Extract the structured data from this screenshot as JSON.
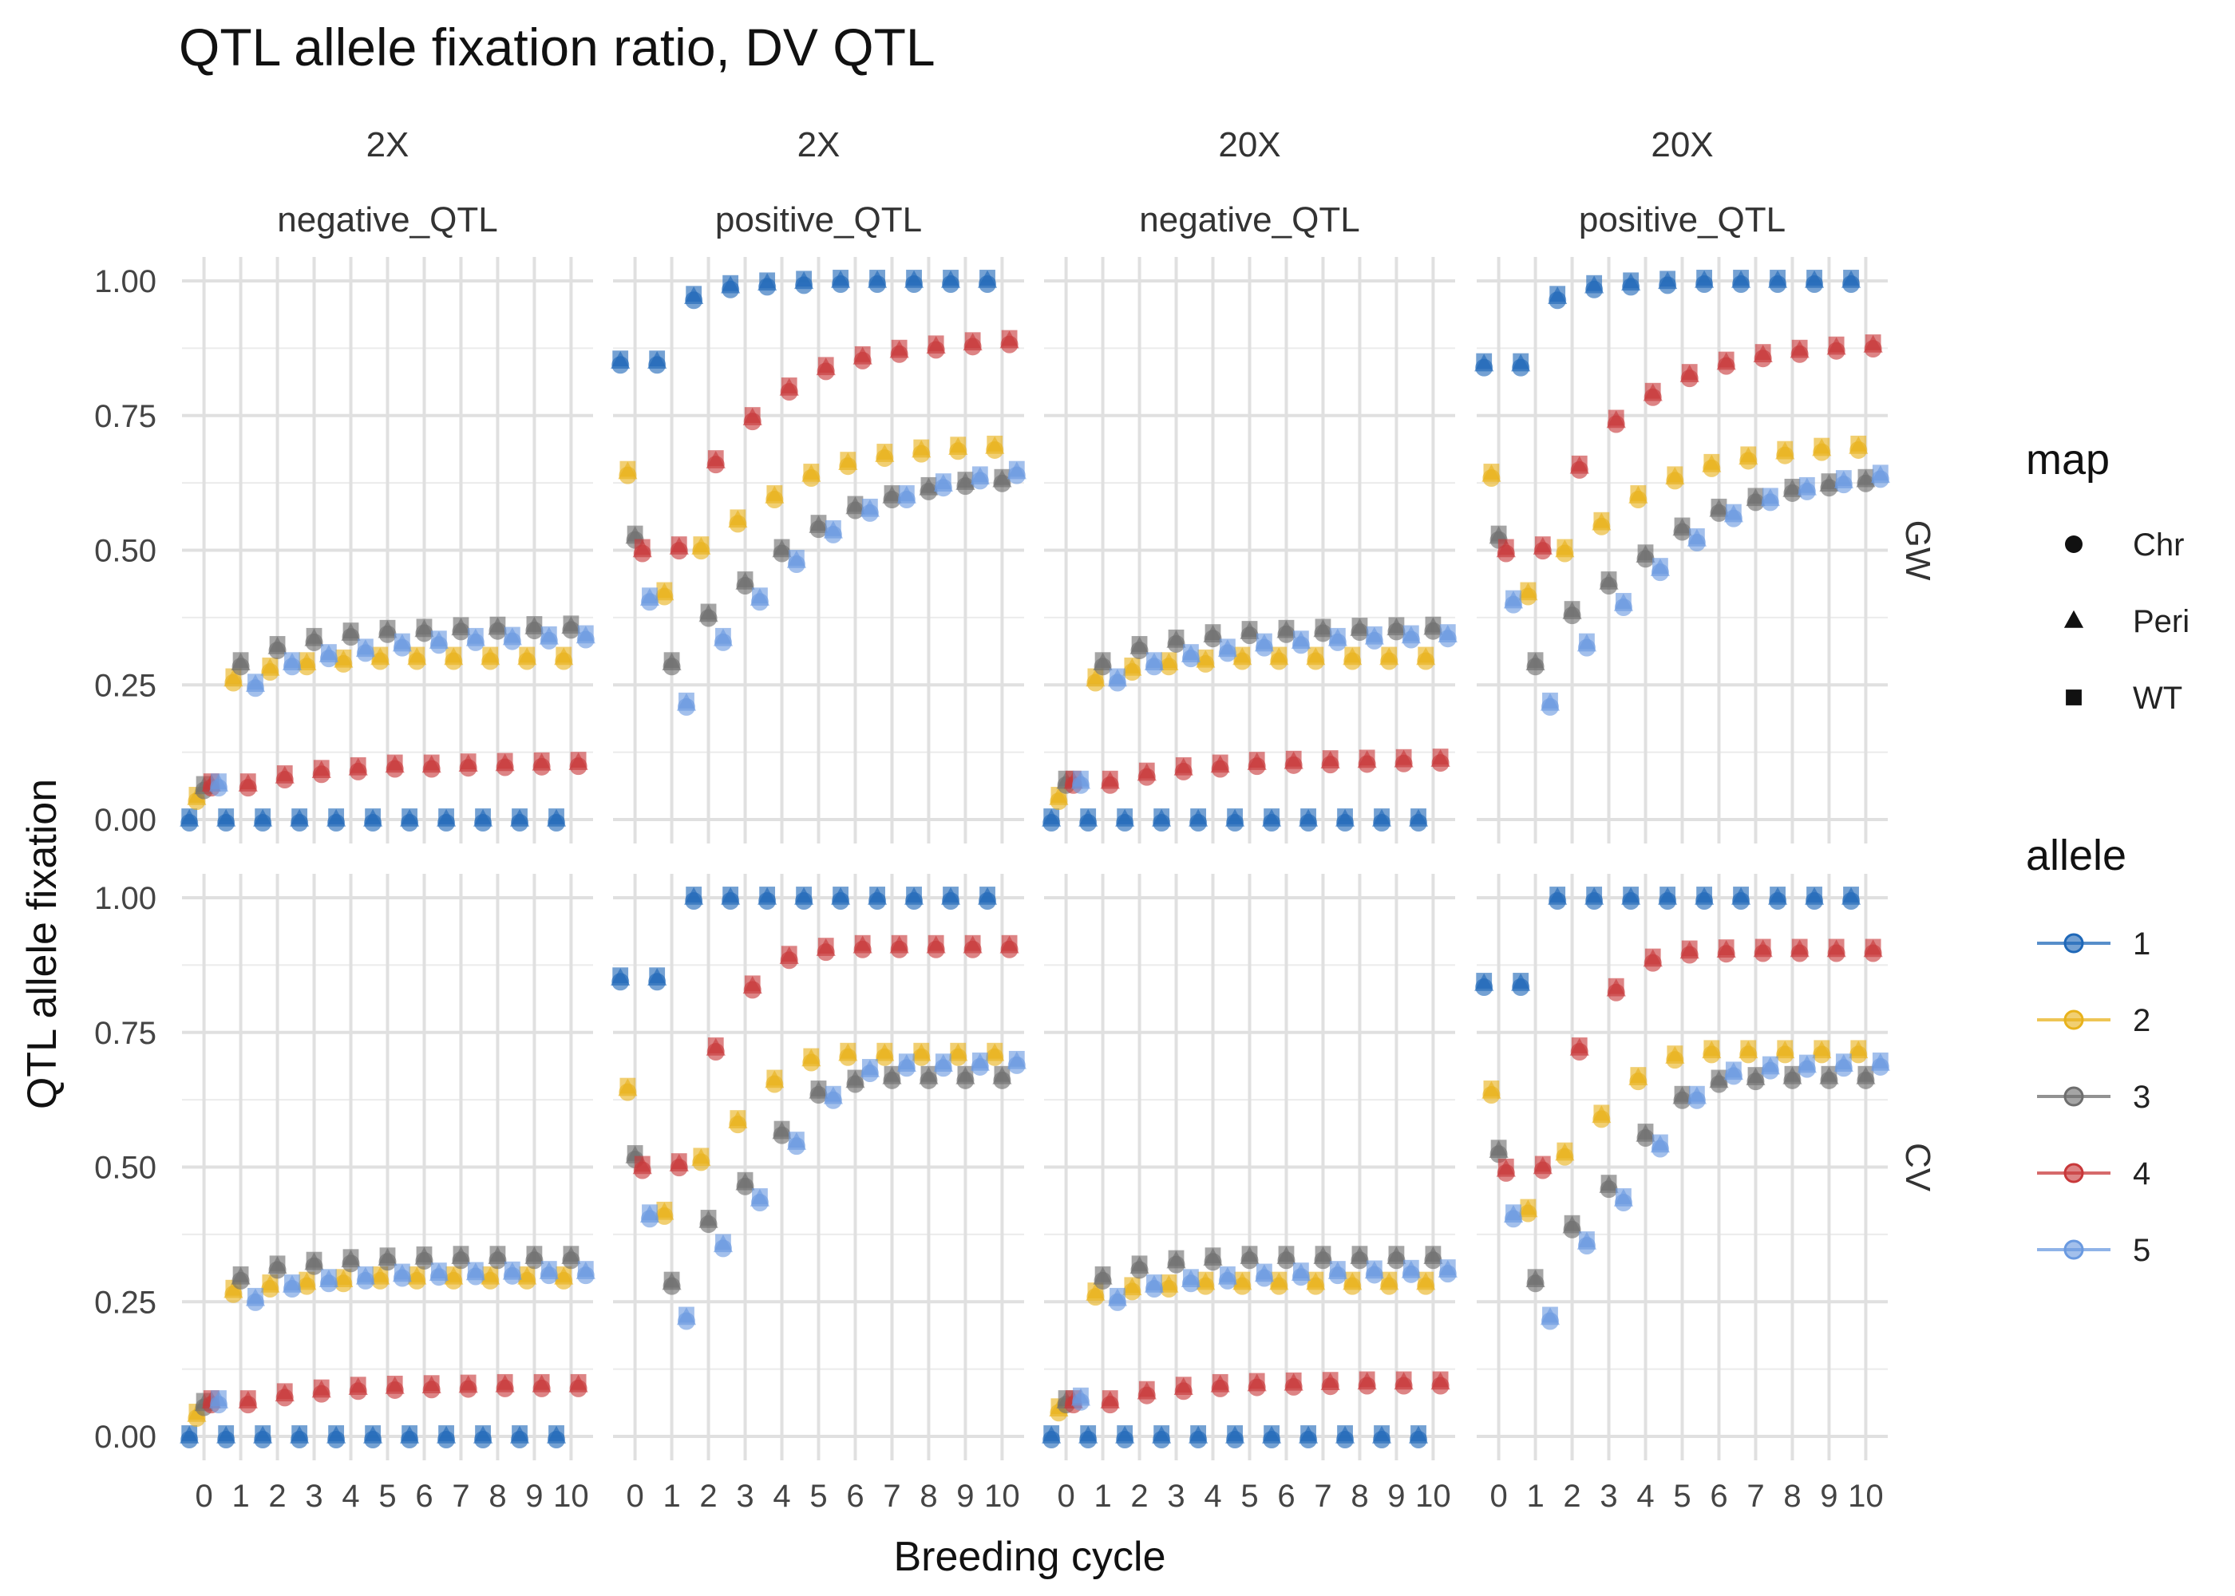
{
  "chart_data": {
    "type": "scatter",
    "title": "QTL allele fixation ratio, DV QTL",
    "xlabel": "Breeding cycle",
    "ylabel": "QTL allele fixation",
    "x_ticks": [
      "0",
      "1",
      "2",
      "3",
      "4",
      "5",
      "6",
      "7",
      "8",
      "9",
      "10"
    ],
    "y_ticks": [
      "0.00",
      "0.25",
      "0.50",
      "0.75",
      "1.00"
    ],
    "xlim": [
      -0.6,
      10.6
    ],
    "ylim": [
      0,
      1
    ],
    "grid": true,
    "columns": [
      {
        "top": "2X",
        "bottom": "negative_QTL"
      },
      {
        "top": "2X",
        "bottom": "positive_QTL"
      },
      {
        "top": "20X",
        "bottom": "negative_QTL"
      },
      {
        "top": "20X",
        "bottom": "positive_QTL"
      }
    ],
    "rows": [
      "GW",
      "CV"
    ],
    "legend": {
      "placement": "right",
      "map_title": "map",
      "map": [
        {
          "label": "Chr",
          "shape": "circle"
        },
        {
          "label": "Peri",
          "shape": "triangle"
        },
        {
          "label": "WT",
          "shape": "square"
        }
      ],
      "allele_title": "allele",
      "alleles": [
        {
          "label": "1",
          "color": "#1f68b8"
        },
        {
          "label": "2",
          "color": "#e8b21c"
        },
        {
          "label": "3",
          "color": "#6e6e6e"
        },
        {
          "label": "4",
          "color": "#c8383a"
        },
        {
          "label": "5",
          "color": "#6a9ae0"
        }
      ]
    },
    "allele_offsets": [
      -0.4,
      -0.2,
      0.0,
      0.2,
      0.4
    ],
    "panels": [
      {
        "row": "GW",
        "col": 0,
        "series": [
          {
            "allele": "1",
            "values": [
              0,
              0,
              0,
              0,
              0,
              0,
              0,
              0,
              0,
              0,
              0
            ]
          },
          {
            "allele": "2",
            "values": [
              0.04,
              0.26,
              0.28,
              0.29,
              0.295,
              0.3,
              0.3,
              0.3,
              0.3,
              0.3,
              0.3
            ]
          },
          {
            "allele": "3",
            "values": [
              0.06,
              0.29,
              0.32,
              0.335,
              0.345,
              0.35,
              0.352,
              0.355,
              0.356,
              0.357,
              0.358
            ]
          },
          {
            "allele": "4",
            "values": [
              0.065,
              0.065,
              0.08,
              0.09,
              0.095,
              0.1,
              0.1,
              0.102,
              0.103,
              0.104,
              0.105
            ]
          },
          {
            "allele": "5",
            "values": [
              0.065,
              0.25,
              0.29,
              0.305,
              0.315,
              0.325,
              0.33,
              0.335,
              0.337,
              0.338,
              0.34
            ]
          }
        ]
      },
      {
        "row": "GW",
        "col": 1,
        "series": [
          {
            "allele": "1",
            "values": [
              0.85,
              0.85,
              0.97,
              0.99,
              0.995,
              0.998,
              1.0,
              1.0,
              1.0,
              1.0,
              1.0
            ]
          },
          {
            "allele": "2",
            "values": [
              0.645,
              0.42,
              0.505,
              0.555,
              0.6,
              0.64,
              0.662,
              0.677,
              0.685,
              0.69,
              0.692
            ]
          },
          {
            "allele": "3",
            "values": [
              0.525,
              0.29,
              0.38,
              0.44,
              0.5,
              0.545,
              0.58,
              0.6,
              0.615,
              0.625,
              0.63
            ]
          },
          {
            "allele": "4",
            "values": [
              0.5,
              0.505,
              0.665,
              0.745,
              0.8,
              0.838,
              0.858,
              0.87,
              0.878,
              0.884,
              0.888
            ]
          },
          {
            "allele": "5",
            "values": [
              0.41,
              0.215,
              0.335,
              0.41,
              0.48,
              0.535,
              0.575,
              0.6,
              0.622,
              0.635,
              0.645
            ]
          }
        ]
      },
      {
        "row": "GW",
        "col": 2,
        "series": [
          {
            "allele": "1",
            "values": [
              0,
              0,
              0,
              0,
              0,
              0,
              0,
              0,
              0,
              0,
              0
            ]
          },
          {
            "allele": "2",
            "values": [
              0.04,
              0.26,
              0.28,
              0.29,
              0.295,
              0.3,
              0.3,
              0.3,
              0.3,
              0.3,
              0.3
            ]
          },
          {
            "allele": "3",
            "values": [
              0.07,
              0.29,
              0.32,
              0.332,
              0.342,
              0.348,
              0.35,
              0.352,
              0.354,
              0.355,
              0.356
            ]
          },
          {
            "allele": "4",
            "values": [
              0.07,
              0.07,
              0.085,
              0.095,
              0.1,
              0.105,
              0.107,
              0.108,
              0.109,
              0.11,
              0.111
            ]
          },
          {
            "allele": "5",
            "values": [
              0.07,
              0.26,
              0.29,
              0.305,
              0.315,
              0.325,
              0.33,
              0.335,
              0.338,
              0.34,
              0.342
            ]
          }
        ]
      },
      {
        "row": "GW",
        "col": 3,
        "series": [
          {
            "allele": "1",
            "values": [
              0.845,
              0.845,
              0.97,
              0.99,
              0.995,
              0.998,
              1.0,
              1.0,
              1.0,
              1.0,
              1.0
            ]
          },
          {
            "allele": "2",
            "values": [
              0.64,
              0.42,
              0.5,
              0.55,
              0.6,
              0.635,
              0.658,
              0.672,
              0.682,
              0.688,
              0.692
            ]
          },
          {
            "allele": "3",
            "values": [
              0.525,
              0.29,
              0.385,
              0.44,
              0.49,
              0.54,
              0.575,
              0.595,
              0.612,
              0.622,
              0.63
            ]
          },
          {
            "allele": "4",
            "values": [
              0.5,
              0.505,
              0.655,
              0.74,
              0.79,
              0.825,
              0.848,
              0.862,
              0.87,
              0.876,
              0.88
            ]
          },
          {
            "allele": "5",
            "values": [
              0.405,
              0.215,
              0.325,
              0.4,
              0.465,
              0.52,
              0.565,
              0.595,
              0.615,
              0.628,
              0.638
            ]
          }
        ]
      },
      {
        "row": "CV",
        "col": 0,
        "series": [
          {
            "allele": "1",
            "values": [
              0,
              0,
              0,
              0,
              0,
              0,
              0,
              0,
              0,
              0,
              0
            ]
          },
          {
            "allele": "2",
            "values": [
              0.04,
              0.27,
              0.28,
              0.285,
              0.29,
              0.295,
              0.295,
              0.295,
              0.295,
              0.295,
              0.295
            ]
          },
          {
            "allele": "3",
            "values": [
              0.06,
              0.295,
              0.315,
              0.322,
              0.327,
              0.33,
              0.332,
              0.333,
              0.333,
              0.333,
              0.333
            ]
          },
          {
            "allele": "4",
            "values": [
              0.065,
              0.065,
              0.078,
              0.085,
              0.09,
              0.092,
              0.093,
              0.094,
              0.095,
              0.095,
              0.095
            ]
          },
          {
            "allele": "5",
            "values": [
              0.065,
              0.255,
              0.28,
              0.29,
              0.295,
              0.3,
              0.302,
              0.303,
              0.304,
              0.305,
              0.305
            ]
          }
        ]
      },
      {
        "row": "CV",
        "col": 1,
        "series": [
          {
            "allele": "1",
            "values": [
              0.85,
              0.85,
              1.0,
              1.0,
              1.0,
              1.0,
              1.0,
              1.0,
              1.0,
              1.0,
              1.0
            ]
          },
          {
            "allele": "2",
            "values": [
              0.645,
              0.415,
              0.515,
              0.585,
              0.66,
              0.7,
              0.71,
              0.71,
              0.71,
              0.71,
              0.71
            ]
          },
          {
            "allele": "3",
            "values": [
              0.52,
              0.285,
              0.4,
              0.47,
              0.565,
              0.64,
              0.66,
              0.667,
              0.667,
              0.667,
              0.667
            ]
          },
          {
            "allele": "4",
            "values": [
              0.5,
              0.505,
              0.72,
              0.835,
              0.89,
              0.905,
              0.91,
              0.91,
              0.91,
              0.91,
              0.91
            ]
          },
          {
            "allele": "5",
            "values": [
              0.41,
              0.22,
              0.355,
              0.44,
              0.545,
              0.63,
              0.68,
              0.69,
              0.69,
              0.692,
              0.695
            ]
          }
        ]
      },
      {
        "row": "CV",
        "col": 2,
        "series": [
          {
            "allele": "1",
            "values": [
              0,
              0,
              0,
              0,
              0,
              0,
              0,
              0,
              0,
              0,
              0
            ]
          },
          {
            "allele": "2",
            "values": [
              0.05,
              0.265,
              0.275,
              0.28,
              0.285,
              0.285,
              0.285,
              0.285,
              0.285,
              0.285,
              0.285
            ]
          },
          {
            "allele": "3",
            "values": [
              0.065,
              0.295,
              0.315,
              0.325,
              0.33,
              0.333,
              0.333,
              0.333,
              0.333,
              0.333,
              0.333
            ]
          },
          {
            "allele": "4",
            "values": [
              0.065,
              0.065,
              0.082,
              0.09,
              0.095,
              0.097,
              0.098,
              0.099,
              0.1,
              0.1,
              0.1
            ]
          },
          {
            "allele": "5",
            "values": [
              0.07,
              0.255,
              0.28,
              0.29,
              0.295,
              0.3,
              0.302,
              0.305,
              0.306,
              0.307,
              0.308
            ]
          }
        ]
      },
      {
        "row": "CV",
        "col": 3,
        "series": [
          {
            "allele": "1",
            "values": [
              0.84,
              0.84,
              1.0,
              1.0,
              1.0,
              1.0,
              1.0,
              1.0,
              1.0,
              1.0,
              1.0
            ]
          },
          {
            "allele": "2",
            "values": [
              0.64,
              0.42,
              0.525,
              0.595,
              0.665,
              0.705,
              0.715,
              0.715,
              0.715,
              0.715,
              0.715
            ]
          },
          {
            "allele": "3",
            "values": [
              0.53,
              0.29,
              0.39,
              0.465,
              0.56,
              0.63,
              0.66,
              0.665,
              0.667,
              0.667,
              0.667
            ]
          },
          {
            "allele": "4",
            "values": [
              0.495,
              0.5,
              0.72,
              0.83,
              0.885,
              0.9,
              0.902,
              0.903,
              0.903,
              0.903,
              0.903
            ]
          },
          {
            "allele": "5",
            "values": [
              0.41,
              0.22,
              0.36,
              0.44,
              0.54,
              0.63,
              0.675,
              0.685,
              0.688,
              0.69,
              0.692
            ]
          }
        ]
      }
    ]
  }
}
